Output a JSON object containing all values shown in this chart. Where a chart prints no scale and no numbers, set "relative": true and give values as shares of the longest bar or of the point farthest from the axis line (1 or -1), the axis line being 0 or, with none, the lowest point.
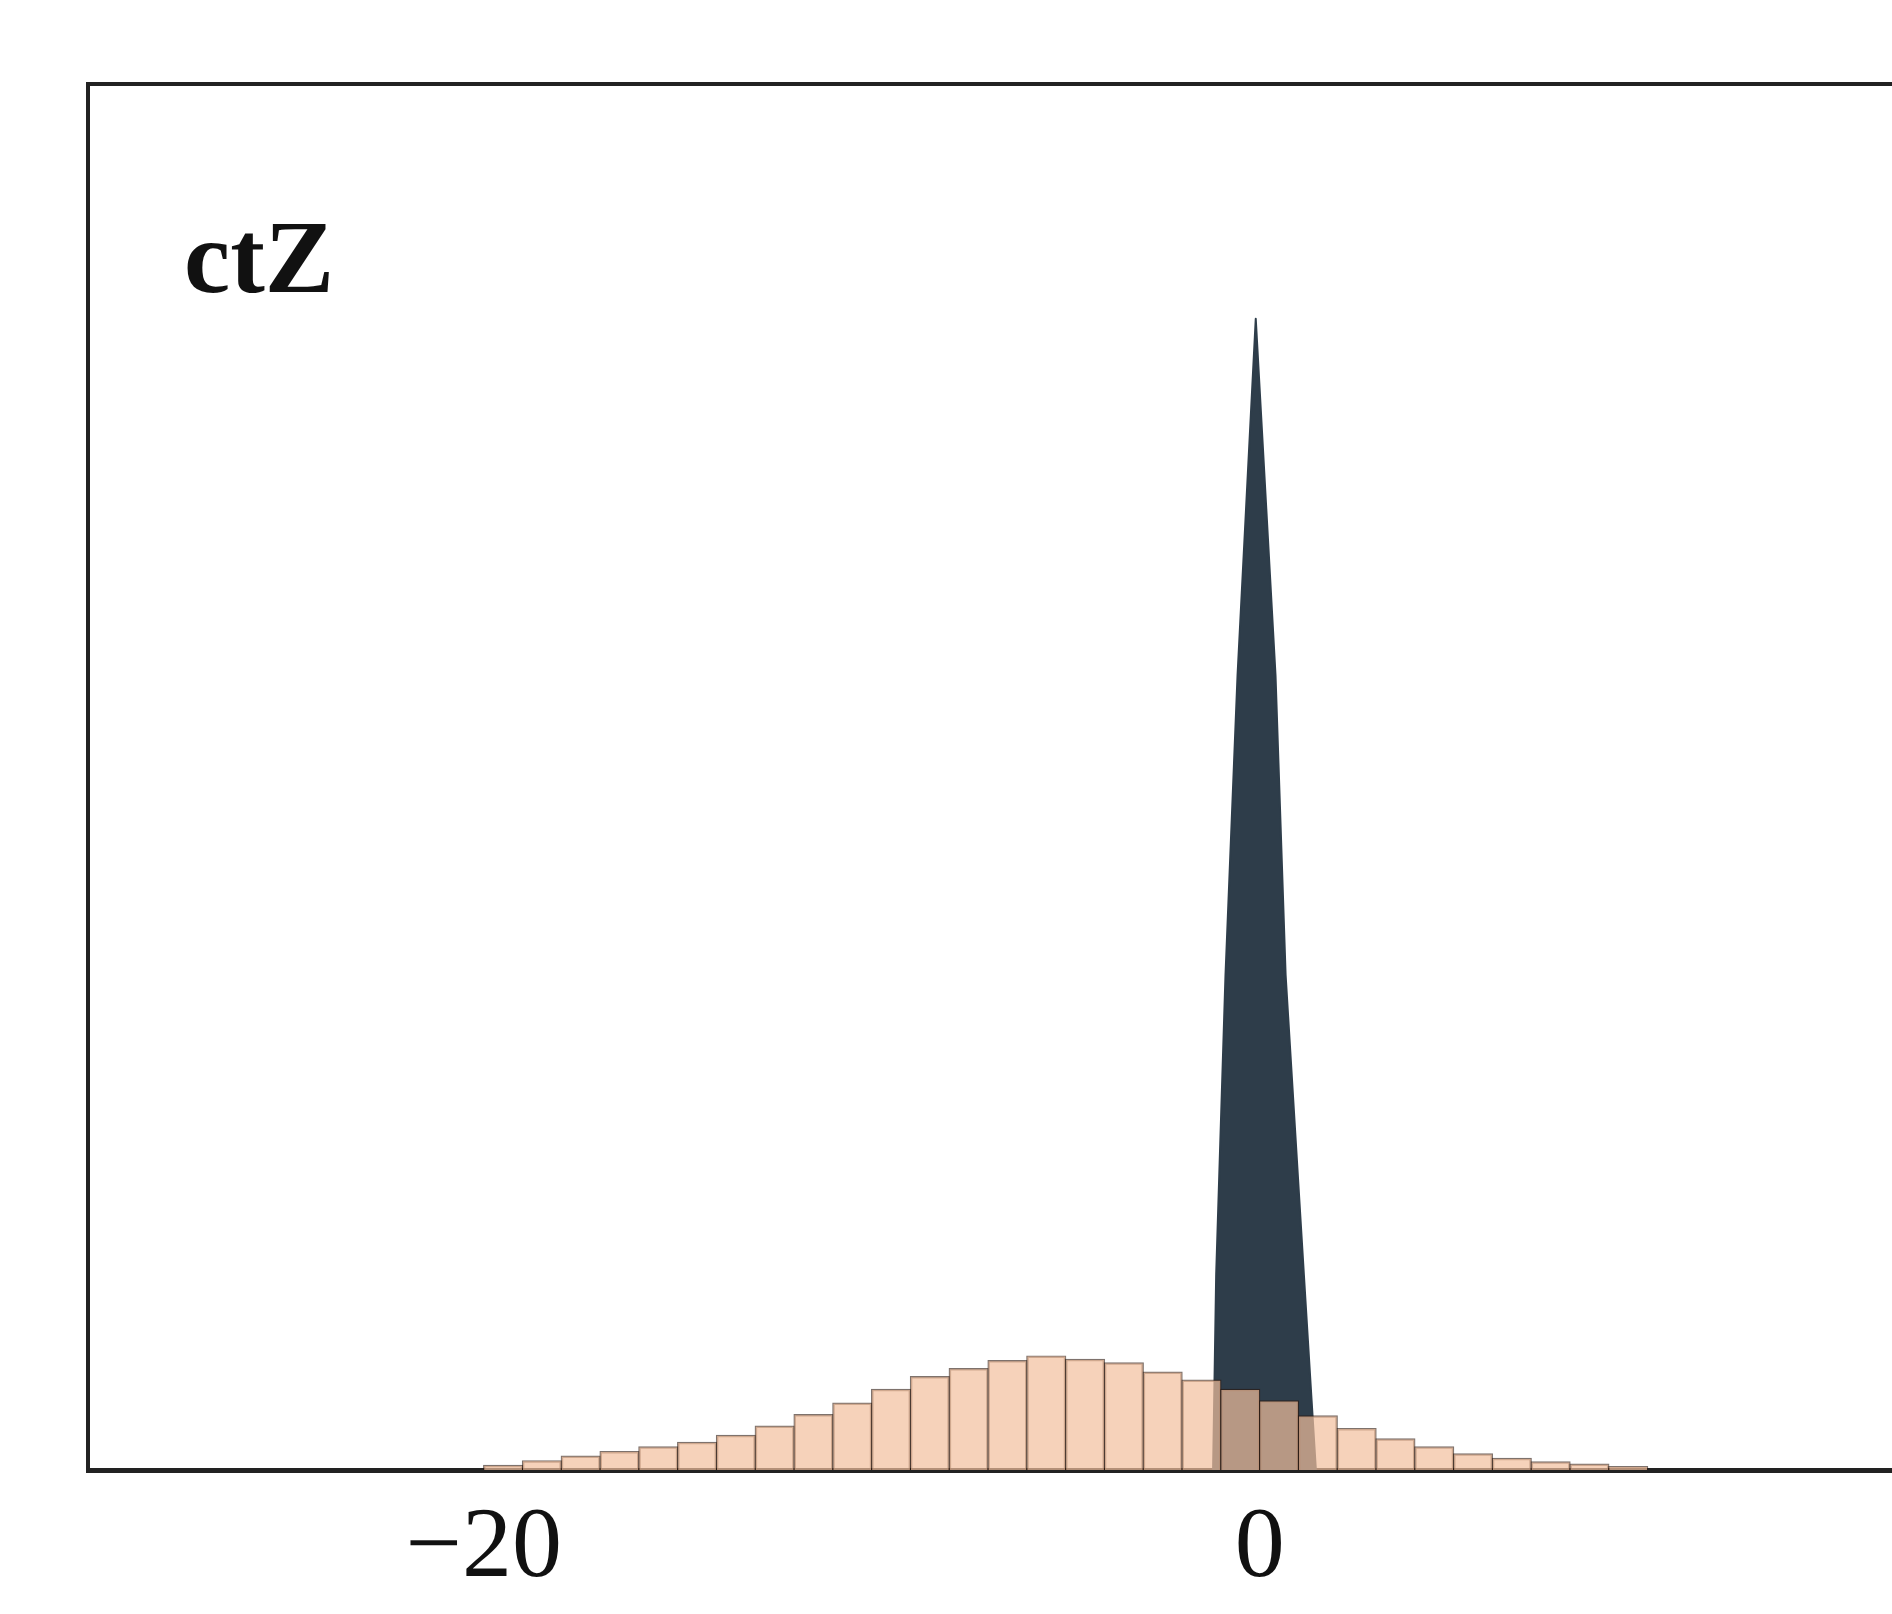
{
  "chart_data": {
    "type": "histogram",
    "title": "ctZ",
    "relative": true,
    "legend": false,
    "grid": false,
    "xlim": [
      -30.2,
      16.3
    ],
    "xticks": [
      {
        "value": -20,
        "label": "−20"
      },
      {
        "value": 0,
        "label": "0"
      }
    ],
    "series": [
      {
        "type": "area",
        "color": "#2e3d4a",
        "x": [
          -1.2,
          -1.12,
          -0.88,
          -0.57,
          -0.1,
          0.41,
          0.67,
          1.14,
          1.34,
          1.45
        ],
        "values": [
          0,
          0.17,
          0.43,
          0.69,
          1,
          0.69,
          0.43,
          0.17,
          0.06,
          0
        ]
      },
      {
        "color": "#f2bf9c",
        "bins": [
          -21,
          -20,
          -19,
          -18,
          -17,
          -16,
          -15,
          -14,
          -13,
          -12,
          -11,
          -10,
          -9,
          -8,
          -7,
          -6,
          -5,
          -4,
          -3,
          -2,
          -1,
          0,
          1,
          2,
          3,
          4,
          5,
          6,
          7,
          8,
          9,
          10,
          11
        ],
        "values": [
          null,
          0.004,
          0.008,
          0.012,
          0.016,
          0.02,
          0.024,
          0.03,
          0.038,
          0.048,
          0.058,
          0.07,
          0.081,
          0.088,
          0.095,
          0.099,
          0.096,
          0.093,
          0.085,
          0.078,
          0.07,
          0.06,
          0.047,
          0.036,
          0.027,
          0.02,
          0.014,
          0.01,
          0.007,
          0.005,
          0.003,
          null
        ]
      }
    ]
  }
}
